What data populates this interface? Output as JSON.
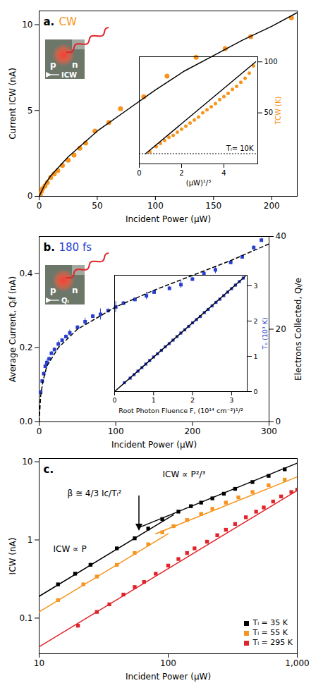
{
  "chart_data": [
    {
      "type": "scatter",
      "panel_label": "a.",
      "title": "CW",
      "photo_labels": [
        "p",
        "n",
        "ICW"
      ],
      "x_label": "Incident Power (µW)",
      "y_label": "Current ICW (nA)",
      "xlim": [
        0,
        222
      ],
      "xticks": [
        0,
        50,
        100,
        150,
        200
      ],
      "ylim": [
        0,
        10.8
      ],
      "yticks": [
        0,
        5,
        10
      ],
      "series": [
        {
          "type": "scatter",
          "marker": "circle",
          "color": "#f7941d",
          "x": [
            1,
            2,
            3,
            5,
            7,
            10,
            13,
            16,
            20,
            25,
            30,
            35,
            40,
            48,
            60,
            70,
            90,
            110,
            135,
            160,
            182,
            217
          ],
          "values": [
            0.1,
            0.3,
            0.45,
            0.6,
            0.8,
            1.1,
            1.3,
            1.5,
            1.8,
            2.1,
            2.4,
            2.8,
            3.1,
            3.8,
            4.3,
            5.1,
            5.8,
            7.0,
            8.1,
            8.6,
            9.3,
            10.4
          ]
        },
        {
          "type": "line",
          "line_style": "solid",
          "color": "#000000",
          "x": [
            0,
            5,
            10,
            25,
            50,
            75,
            100,
            125,
            150,
            175,
            200,
            222
          ],
          "values": [
            0,
            0.7,
            1.2,
            2.3,
            3.8,
            5.0,
            6.2,
            7.3,
            8.2,
            9.1,
            9.9,
            10.7
          ]
        }
      ]
    },
    {
      "type": "scatter",
      "x_label": "(µW)¹/³",
      "y_label": "TCW (K)",
      "xlim": [
        0,
        5.6
      ],
      "xticks": [
        0,
        2,
        4
      ],
      "ylim": [
        0,
        105
      ],
      "yticks": [
        50,
        100
      ],
      "reference": {
        "value": 10,
        "label": "Tₗ= 10K"
      },
      "series": [
        {
          "type": "scatter",
          "marker": "circle",
          "color": "#f7941d",
          "x": [
            0.5,
            0.8,
            1.0,
            1.2,
            1.4,
            1.6,
            1.8,
            2.0,
            2.2,
            2.4,
            2.6,
            2.8,
            3.0,
            3.2,
            3.4,
            3.6,
            3.8,
            4.0,
            4.2,
            4.4,
            4.6,
            4.8,
            5.0,
            5.2,
            5.4
          ],
          "values": [
            12,
            17,
            20,
            23,
            26,
            28,
            31,
            34,
            37,
            40,
            43,
            46,
            50,
            53,
            56,
            59,
            63,
            66,
            69,
            73,
            76,
            80,
            84,
            89,
            96
          ]
        },
        {
          "type": "line",
          "line_style": "solid",
          "color": "#000000",
          "x": [
            0.3,
            5.5
          ],
          "values": [
            10,
            100
          ]
        }
      ]
    },
    {
      "type": "scatter",
      "panel_label": "b.",
      "title": "180 fs",
      "photo_labels": [
        "p",
        "n",
        "Qₗ"
      ],
      "x_label": "Incident Power (µW)",
      "y_label": "Average Current, Qₗf (nA)",
      "y2_label": "Electrons Collected, Qₗ/e",
      "xlim": [
        0,
        300
      ],
      "xticks": [
        0,
        100,
        200,
        300
      ],
      "ylim": [
        0,
        0.5
      ],
      "yticks": [
        {
          "value": 0,
          "label": "0.0"
        },
        0.2,
        0.4
      ],
      "y2lim": [
        0,
        40
      ],
      "y2ticks": [
        0,
        20,
        40
      ],
      "series": [
        {
          "type": "scatter",
          "marker": "square",
          "color": "#2a3fd0",
          "x": [
            2,
            4,
            6,
            8,
            10,
            13,
            16,
            20,
            25,
            30,
            35,
            40,
            50,
            60,
            70,
            80,
            90,
            100,
            110,
            125,
            140,
            150,
            170,
            185,
            200,
            215,
            230,
            250,
            265,
            280,
            290
          ],
          "values": [
            0.08,
            0.11,
            0.13,
            0.15,
            0.16,
            0.17,
            0.185,
            0.195,
            0.21,
            0.22,
            0.23,
            0.24,
            0.255,
            0.27,
            0.285,
            0.29,
            0.3,
            0.31,
            0.32,
            0.33,
            0.34,
            0.35,
            0.36,
            0.37,
            0.385,
            0.4,
            0.41,
            0.43,
            0.445,
            0.47,
            0.49
          ],
          "errors": [
            0.005,
            0.005,
            0.005,
            0.005,
            0.008,
            0.005,
            0.005,
            0.005,
            0.008,
            0.005,
            0.005,
            0.008,
            0.005,
            0.01,
            0.005,
            0.015,
            0.005,
            0.015,
            0.005,
            0.005,
            0.01,
            0.005,
            0.005,
            0.01,
            0.005,
            0.005,
            0.01,
            0.005,
            0.005,
            0.005,
            0.005
          ]
        },
        {
          "type": "line",
          "line_style": "dashed",
          "color": "#000000",
          "x": [
            0,
            2,
            5,
            10,
            25,
            50,
            100,
            150,
            200,
            250,
            300
          ],
          "values": [
            0,
            0.07,
            0.11,
            0.15,
            0.2,
            0.25,
            0.31,
            0.355,
            0.395,
            0.435,
            0.48
          ]
        }
      ]
    },
    {
      "type": "scatter",
      "x_label": "Root Photon Fluence F, (10¹⁴ cm⁻²)¹/²",
      "y_label": "Tₒ (10³ K)",
      "xlim": [
        0,
        3.4
      ],
      "xticks": [
        0,
        1,
        2,
        3
      ],
      "ylim": [
        0,
        3.3
      ],
      "yticks": [
        0,
        1,
        2,
        3
      ],
      "series": [
        {
          "type": "scatter",
          "marker": "square",
          "color": "#2a3fd0",
          "x": [
            0.25,
            0.4,
            0.5,
            0.6,
            0.7,
            0.8,
            0.9,
            1.0,
            1.1,
            1.2,
            1.3,
            1.4,
            1.5,
            1.6,
            1.7,
            1.8,
            1.9,
            2.0,
            2.1,
            2.2,
            2.3,
            2.4,
            2.5,
            2.6,
            2.7,
            2.8,
            2.9,
            3.0,
            3.1,
            3.2,
            3.3
          ],
          "values": [
            0.25,
            0.38,
            0.48,
            0.58,
            0.68,
            0.78,
            0.88,
            0.98,
            1.07,
            1.17,
            1.27,
            1.36,
            1.46,
            1.56,
            1.66,
            1.75,
            1.85,
            1.95,
            2.04,
            2.13,
            2.24,
            2.33,
            2.43,
            2.53,
            2.62,
            2.72,
            2.82,
            2.92,
            3.02,
            3.12,
            3.22
          ]
        },
        {
          "type": "line",
          "line_style": "solid",
          "color": "#000000",
          "x": [
            0,
            3.35
          ],
          "values": [
            0,
            3.27
          ]
        }
      ]
    },
    {
      "type": "scatter",
      "panel_label": "c.",
      "log": true,
      "legend": "bottom-right",
      "x_label": "Incident Power (µW)",
      "y_label": "ICW (nA)",
      "xlim": [
        10,
        1000
      ],
      "xticks": [
        10,
        100,
        {
          "value": 1000,
          "label": "1,000"
        }
      ],
      "ylim": [
        0.035,
        11
      ],
      "yticks": [
        0.1,
        1,
        10
      ],
      "annotations": [
        "ICW ∝ P²/³",
        "ICW ∝ P",
        "β ≅ 4/3 Ic/Tₗ²"
      ],
      "series": [
        {
          "name": "Tₗ = 35 K",
          "type": "scatter",
          "marker": "square",
          "color": "#000000",
          "x": [
            14,
            19,
            25,
            40,
            55,
            70,
            90,
            120,
            150,
            180,
            220,
            270,
            330,
            450,
            600,
            800
          ],
          "values": [
            0.27,
            0.37,
            0.48,
            0.78,
            1.05,
            1.4,
            1.85,
            2.3,
            2.7,
            3.0,
            3.4,
            3.9,
            4.5,
            5.5,
            6.6,
            8.0
          ]
        },
        {
          "name": "Tₗ = 55 K",
          "type": "scatter",
          "marker": "square",
          "color": "#f7941d",
          "x": [
            14,
            22,
            28,
            40,
            55,
            70,
            90,
            110,
            140,
            180,
            220,
            280,
            350,
            450,
            600,
            800
          ],
          "values": [
            0.17,
            0.27,
            0.34,
            0.48,
            0.68,
            0.88,
            1.25,
            1.5,
            1.8,
            2.15,
            2.5,
            3.0,
            3.5,
            4.1,
            5.0,
            5.9
          ]
        },
        {
          "name": "Tₗ = 295 K",
          "type": "scatter",
          "marker": "square",
          "color": "#e0242a",
          "x": [
            20,
            28,
            35,
            45,
            55,
            65,
            80,
            100,
            120,
            140,
            160,
            200,
            240,
            280,
            330,
            400,
            480,
            550,
            650,
            750,
            900,
            1000
          ],
          "values": [
            0.08,
            0.12,
            0.15,
            0.2,
            0.25,
            0.29,
            0.37,
            0.47,
            0.57,
            0.68,
            0.78,
            0.95,
            1.15,
            1.35,
            1.6,
            1.95,
            2.3,
            2.6,
            3.1,
            3.6,
            4.1,
            4.4
          ]
        },
        {
          "type": "line",
          "line_style": "solid",
          "color": "#000000",
          "x": [
            10,
            110,
            null,
            60,
            1000
          ],
          "values": [
            0.19,
            2.1,
            null,
            1.45,
            9.6
          ]
        },
        {
          "type": "line",
          "line_style": "solid",
          "color": "#f7941d",
          "x": [
            10,
            100,
            null,
            80,
            1000
          ],
          "values": [
            0.12,
            1.2,
            null,
            1.2,
            6.4
          ]
        },
        {
          "type": "line",
          "line_style": "solid",
          "color": "#e0242a",
          "x": [
            10,
            1000
          ],
          "values": [
            0.043,
            4.3
          ]
        }
      ]
    }
  ]
}
